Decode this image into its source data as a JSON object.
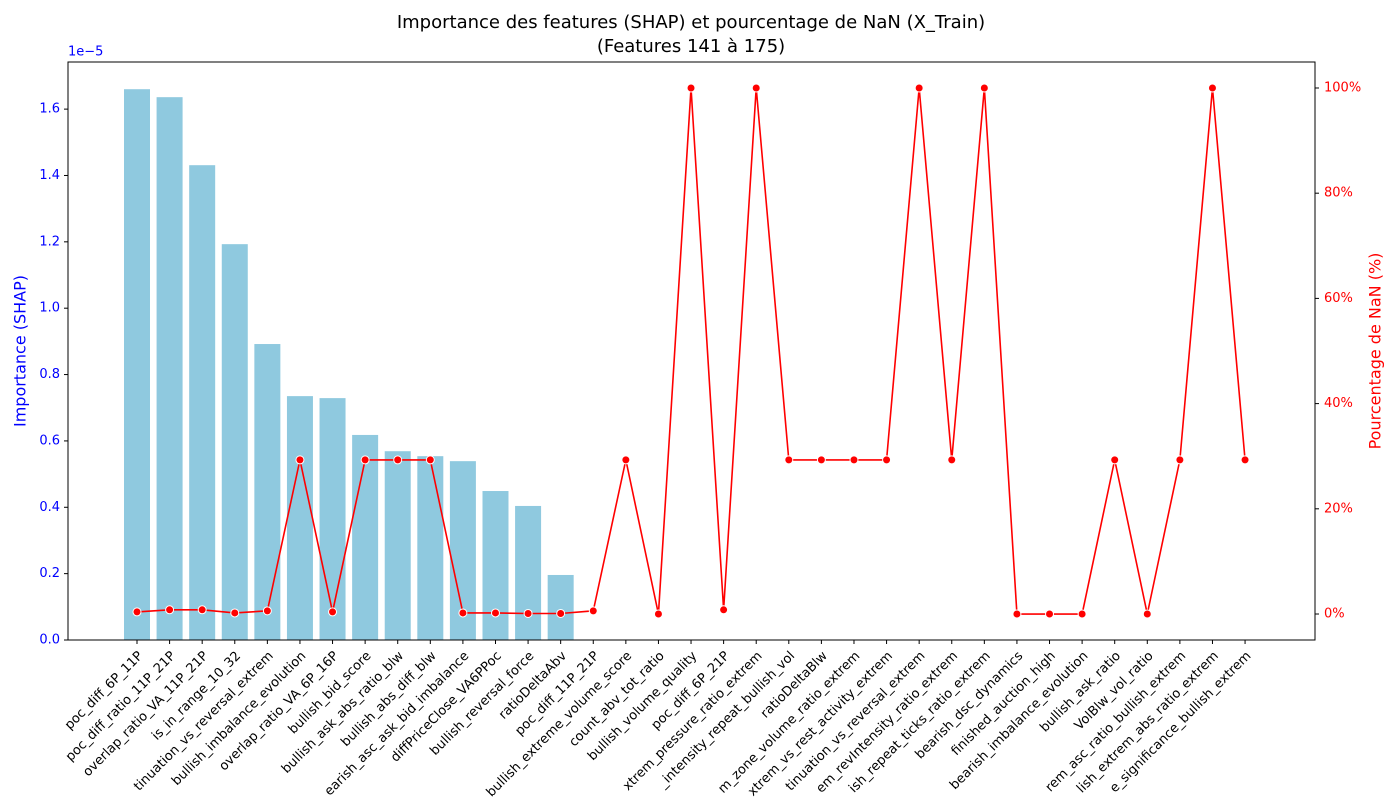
{
  "chart_data": {
    "type": "bar",
    "title": "Importance des features (SHAP) et pourcentage de NaN (X_Train)",
    "subtitle": "(Features 141 à 175)",
    "ylabel": "Importance (SHAP)",
    "y2label": "Pourcentage de NaN (%)",
    "y_offset_label": "1e−5",
    "categories": [
      "poc_diff_6P_11P",
      "poc_diff_ratio_11P_21P",
      "overlap_ratio_VA_11P_21P",
      "is_in_range_10_32",
      "tinuation_vs_reversal_extrem",
      "bullish_imbalance_evolution",
      "overlap_ratio_VA_6P_16P",
      "bullish_bid_score",
      "bullish_ask_abs_ratio_blw",
      "bullish_abs_diff_blw",
      "earish_asc_ask_bid_imbalance",
      "diffPriceClose_VA6PPoc",
      "bullish_reversal_force",
      "ratioDeltaAbv",
      "poc_diff_11P_21P",
      "bullish_extreme_volume_score",
      "count_abv_tot_ratio",
      "bullish_volume_quality",
      "poc_diff_6P_21P",
      "xtrem_pressure_ratio_extrem",
      "_intensity_repeat_bullish_vol",
      "ratioDeltaBlw",
      "m_zone_volume_ratio_extrem",
      "xtrem_vs_rest_activity_extrem",
      "tinuation_vs_reversal_extrem",
      "em_revIntensity_ratio_extrem",
      "ish_repeat_ticks_ratio_extrem",
      "bearish_dsc_dynamics",
      "finished_auction_high",
      "bearish_imbalance_evolution",
      "bullish_ask_ratio",
      "VolBlw_vol_ratio",
      "rem_asc_ratio_bullish_extrem",
      "lish_extrem_abs_ratio_extrem",
      "e_significance_bullish_extrem"
    ],
    "series": [
      {
        "type": "bar",
        "color": "#8fc9df",
        "values": [
          1.66,
          1.636,
          1.431,
          1.193,
          0.892,
          0.735,
          0.729,
          0.618,
          0.569,
          0.554,
          0.539,
          0.449,
          0.404,
          0.196,
          0,
          0,
          0,
          0,
          0,
          0,
          0,
          0,
          0,
          0,
          0,
          0,
          0,
          0,
          0,
          0,
          0,
          0,
          0,
          0,
          0
        ]
      },
      {
        "type": "line",
        "axis": "y2",
        "color": "#ff0000",
        "values": [
          0.4,
          0.8,
          0.8,
          0.2,
          0.6,
          29.3,
          0.4,
          29.3,
          29.3,
          29.3,
          0.2,
          0.2,
          0.1,
          0.1,
          0.6,
          29.3,
          0,
          100,
          0.8,
          100,
          29.3,
          29.3,
          29.3,
          29.3,
          100,
          29.3,
          100,
          0,
          0,
          0,
          29.3,
          0,
          29.3,
          100,
          29.3
        ]
      }
    ],
    "ylim": [
      0,
      1.742
    ],
    "yticks": [
      {
        "value": 0,
        "label": "0.0"
      },
      {
        "value": 0.2,
        "label": "0.2"
      },
      {
        "value": 0.4,
        "label": "0.4"
      },
      {
        "value": 0.6,
        "label": "0.6"
      },
      {
        "value": 0.8,
        "label": "0.8"
      },
      {
        "value": 1.0,
        "label": "1.0"
      },
      {
        "value": 1.2,
        "label": "1.2"
      },
      {
        "value": 1.4,
        "label": "1.4"
      },
      {
        "value": 1.6,
        "label": "1.6"
      }
    ],
    "y2lim": [
      -4.94,
      104.94
    ],
    "y2ticks": [
      {
        "value": 0,
        "label": "0%"
      },
      {
        "value": 20,
        "label": "20%"
      },
      {
        "value": 40,
        "label": "40%"
      },
      {
        "value": 60,
        "label": "60%"
      },
      {
        "value": 80,
        "label": "80%"
      },
      {
        "value": 100,
        "label": "100%"
      }
    ],
    "ycolor": "#0000ff",
    "y2color": "#ff0000"
  }
}
